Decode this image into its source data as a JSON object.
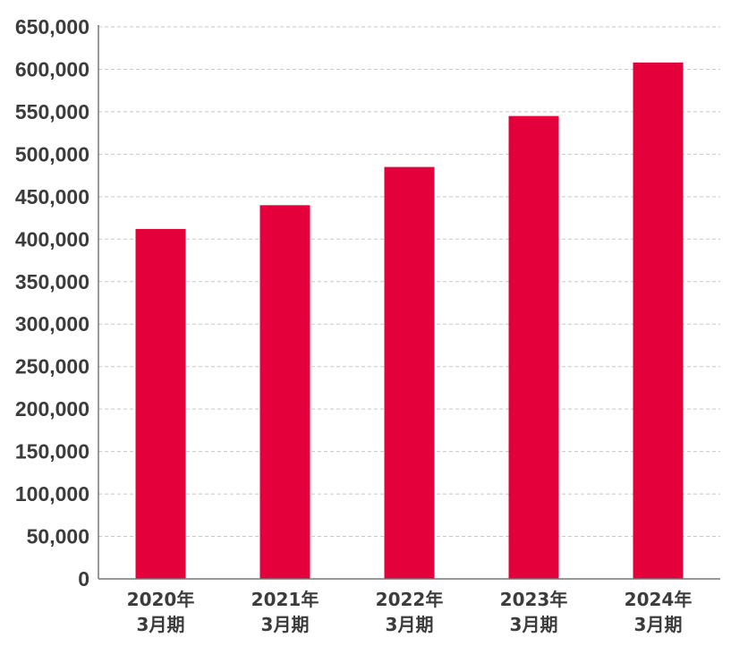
{
  "chart_data": {
    "type": "bar",
    "categories": [
      [
        "2020年",
        "3月期"
      ],
      [
        "2021年",
        "3月期"
      ],
      [
        "2022年",
        "3月期"
      ],
      [
        "2023年",
        "3月期"
      ],
      [
        "2024年",
        "3月期"
      ]
    ],
    "values": [
      412000,
      440000,
      485000,
      545000,
      608000
    ],
    "ylim": [
      0,
      650000
    ],
    "yticks": [
      0,
      50000,
      100000,
      150000,
      200000,
      250000,
      300000,
      350000,
      400000,
      450000,
      500000,
      550000,
      600000,
      650000
    ],
    "ytick_labels": [
      "0",
      "50,000",
      "100,000",
      "150,000",
      "200,000",
      "250,000",
      "300,000",
      "350,000",
      "400,000",
      "450,000",
      "500,000",
      "550,000",
      "600,000",
      "650,000"
    ],
    "bar_color": "#e4003a",
    "grid": true,
    "legend": "none",
    "title": "",
    "xlabel": "",
    "ylabel": ""
  }
}
